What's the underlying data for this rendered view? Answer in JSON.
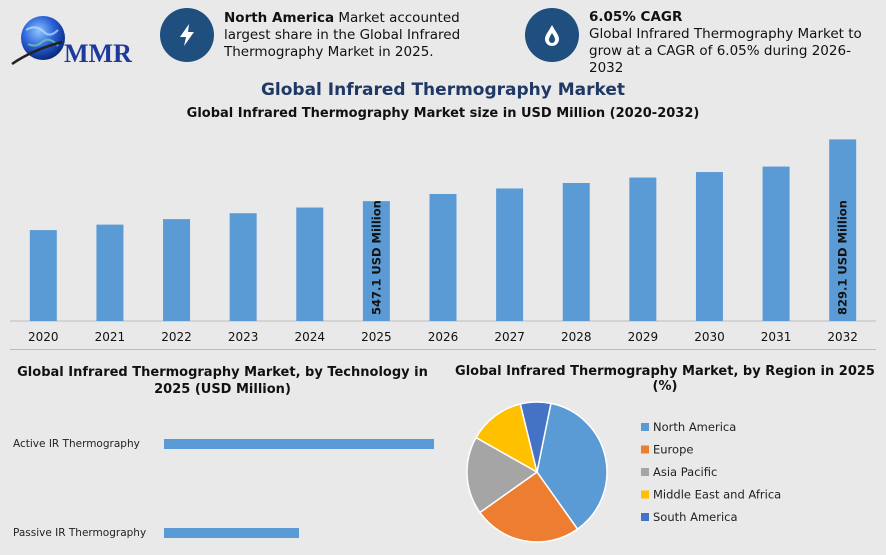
{
  "brand": {
    "logo_text": "MMR"
  },
  "callouts": [
    {
      "bold": "North America",
      "text": " Market accounted largest share in the Global Infrared Thermography Market in 2025.",
      "icon": "lightning-icon"
    },
    {
      "bold": "6.05% CAGR",
      "text": "Global Infrared Thermography Market to grow at a CAGR of 6.05% during 2026-2032",
      "icon": "drop-icon"
    }
  ],
  "colors": {
    "accent": "#1f4f7f",
    "title": "#1f3864",
    "bar": "#5b9bd5"
  },
  "titles": {
    "main": "Global Infrared Thermography Market",
    "sub": "Global Infrared Thermography Market size in USD Million (2020-2032)",
    "tech": "Global Infrared Thermography Market, by Technology in 2025 (USD Million)",
    "region": "Global Infrared Thermography Market, by Region in 2025 (%)"
  },
  "chart_data": [
    {
      "type": "bar",
      "categories": [
        "2020",
        "2021",
        "2022",
        "2023",
        "2024",
        "2025",
        "2026",
        "2027",
        "2028",
        "2029",
        "2030",
        "2031",
        "2032"
      ],
      "values": [
        415,
        440,
        465,
        492,
        518,
        547.1,
        580,
        605,
        630,
        655,
        680,
        705,
        829.1
      ],
      "data_labels": {
        "2025": "547.1 USD Million",
        "2032": "829.1 USD Million"
      },
      "ylim": [
        0,
        840
      ],
      "grid": false,
      "color": "#5b9bd5"
    },
    {
      "type": "bar",
      "orientation": "horizontal",
      "categories": [
        "Active IR Thermography",
        "Passive IR Thermography"
      ],
      "values": [
        100,
        50
      ],
      "xlim": [
        0,
        100
      ],
      "grid": false,
      "color": "#5b9bd5"
    },
    {
      "type": "pie",
      "labels": [
        "North America",
        "Europe",
        "Asia Pacific",
        "Middle East and Africa",
        "South America"
      ],
      "values": [
        37,
        25,
        18,
        13,
        7
      ],
      "colors": [
        "#5b9bd5",
        "#ed7d31",
        "#a5a5a5",
        "#ffc000",
        "#4472c4"
      ],
      "legend": "right"
    }
  ]
}
